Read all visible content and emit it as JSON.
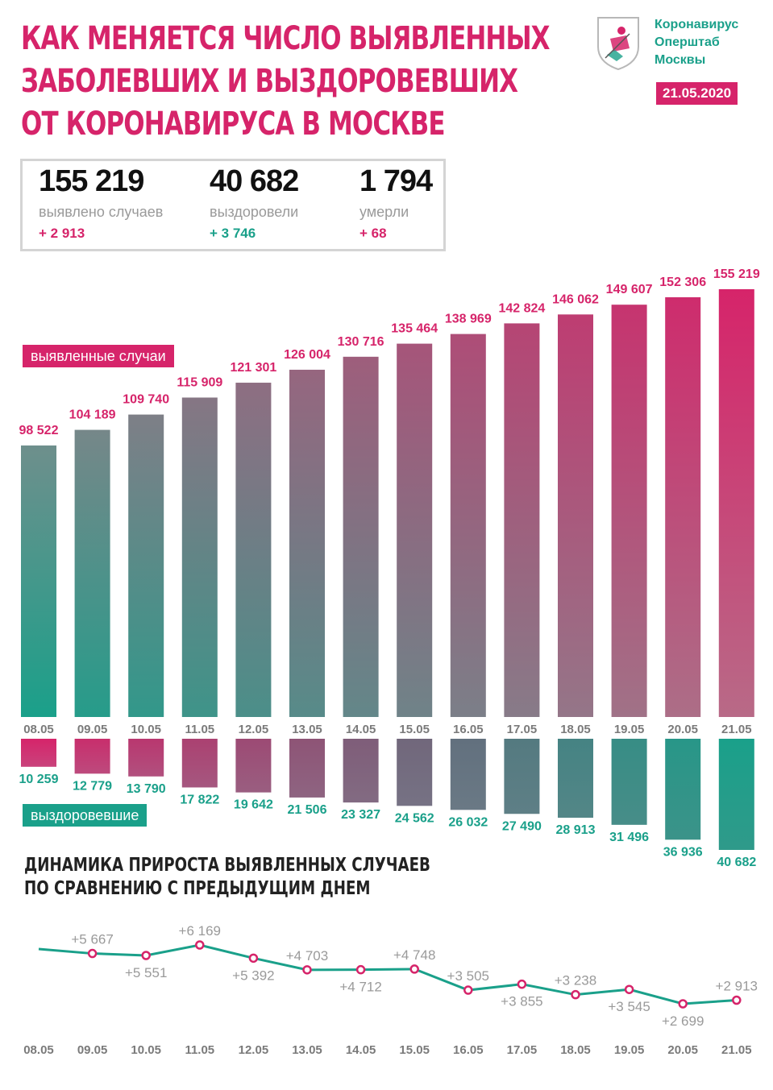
{
  "title_lines": [
    "КАК МЕНЯЕТСЯ ЧИСЛО ВЫЯВЛЕННЫХ",
    "ЗАБОЛЕВШИХ И ВЫЗДОРОВЕВШИХ",
    "ОТ КОРОНАВИРУСА В МОСКВЕ"
  ],
  "brand_lines": [
    "Коронавирус",
    "Оперштаб",
    "Москвы"
  ],
  "date": "21.05.2020",
  "stats": [
    {
      "number": "155 219",
      "label": "выявлено случаев",
      "delta": "+ 2 913"
    },
    {
      "number": "40 682",
      "label": "выздоровели",
      "delta": "+ 3 746"
    },
    {
      "number": "1 794",
      "label": "умерли",
      "delta": "+ 68"
    }
  ],
  "legend": {
    "cases": "выявленные случаи",
    "recovered": "выздоровевшие"
  },
  "subtitle_lines": [
    "ДИНАМИКА ПРИРОСТА ВЫЯВЛЕННЫХ СЛУЧАЕВ",
    "ПО СРАВНЕНИЮ С ПРЕДЫДУЩИМ ДНЕМ"
  ],
  "colors": {
    "pink": "#d6246a",
    "teal": "#1aa08a",
    "gray_label": "#9a9a9a"
  },
  "chart_data": [
    {
      "type": "bar",
      "categories": [
        "08.05",
        "09.05",
        "10.05",
        "11.05",
        "12.05",
        "13.05",
        "14.05",
        "15.05",
        "16.05",
        "17.05",
        "18.05",
        "19.05",
        "20.05",
        "21.05"
      ],
      "series": [
        {
          "name": "выявленные случаи",
          "values": [
            98522,
            104189,
            109740,
            115909,
            121301,
            126004,
            130716,
            135464,
            138969,
            142824,
            146062,
            149607,
            152306,
            155219
          ],
          "labels": [
            "98 522",
            "104 189",
            "109 740",
            "115 909",
            "121 301",
            "126 004",
            "130 716",
            "135 464",
            "138 969",
            "142 824",
            "146 062",
            "149 607",
            "152 306",
            "155 219"
          ]
        },
        {
          "name": "выздоровевшие",
          "values": [
            10259,
            12779,
            13790,
            17822,
            19642,
            21506,
            23327,
            24562,
            26032,
            27490,
            28913,
            31496,
            36936,
            40682
          ],
          "labels": [
            "10 259",
            "12 779",
            "13 790",
            "17 822",
            "19 642",
            "21 506",
            "23 327",
            "24 562",
            "26 032",
            "27 490",
            "28 913",
            "31 496",
            "36 936",
            "40 682"
          ]
        }
      ]
    },
    {
      "type": "line",
      "categories": [
        "08.05",
        "09.05",
        "10.05",
        "11.05",
        "12.05",
        "13.05",
        "14.05",
        "15.05",
        "16.05",
        "17.05",
        "18.05",
        "19.05",
        "20.05",
        "21.05"
      ],
      "values": [
        null,
        5667,
        5551,
        6169,
        5392,
        4703,
        4712,
        4748,
        3505,
        3855,
        3238,
        3545,
        2699,
        2913
      ],
      "labels": [
        "",
        "+5 667",
        "+5 551",
        "+6 169",
        "+5 392",
        "+4 703",
        "+4 712",
        "+4 748",
        "+3 505",
        "+3 855",
        "+3 238",
        "+3 545",
        "+2 699",
        "+2 913"
      ]
    }
  ]
}
